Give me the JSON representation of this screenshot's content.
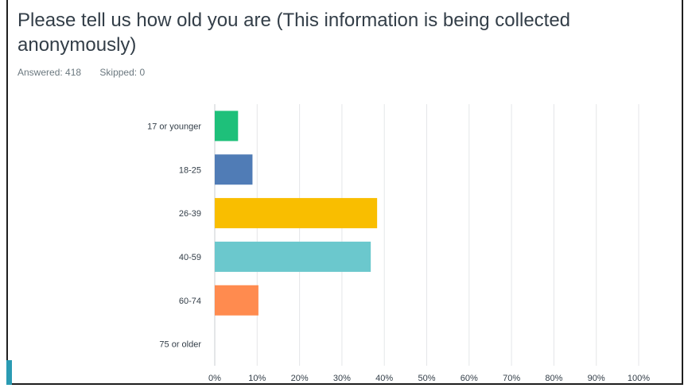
{
  "question": {
    "title": "Please tell us how old you are (This information is being collected anonymously)",
    "answered": "Answered: 418",
    "skipped": "Skipped: 0"
  },
  "chart_data": {
    "type": "bar",
    "orientation": "horizontal",
    "categories": [
      "17 or younger",
      "18-25",
      "26-39",
      "40-59",
      "60-74",
      "75 or older"
    ],
    "values": [
      5.5,
      8.9,
      38.3,
      36.8,
      10.3,
      0
    ],
    "colors": [
      "#1ec07a",
      "#507cb6",
      "#f9be00",
      "#6bc8cd",
      "#ff8b4f",
      "#cccccc"
    ],
    "xlim": [
      0,
      100
    ],
    "xticks": [
      "0%",
      "10%",
      "20%",
      "30%",
      "40%",
      "50%",
      "60%",
      "70%",
      "80%",
      "90%",
      "100%"
    ],
    "grid": true
  }
}
